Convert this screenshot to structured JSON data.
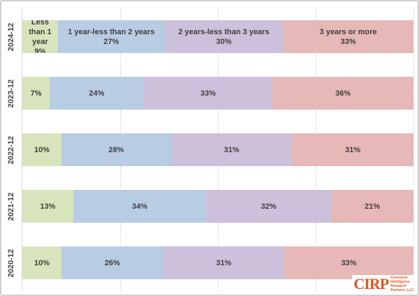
{
  "chart_data": {
    "type": "bar",
    "variant": "horizontal-stacked-100",
    "title": "",
    "xlabel": "",
    "ylabel": "",
    "categories": [
      "Less than 1 year",
      "1 year-less than 2 years",
      "2 years-less than 3 years",
      "3 years or more"
    ],
    "series_colors": [
      "#d8e4bc",
      "#b8cce4",
      "#ccc0da",
      "#e6b8b7"
    ],
    "rows": [
      {
        "label": "2024-12",
        "values": [
          9,
          27,
          30,
          33
        ]
      },
      {
        "label": "2023-12",
        "values": [
          7,
          24,
          33,
          36
        ]
      },
      {
        "label": "2022-12",
        "values": [
          10,
          28,
          31,
          31
        ]
      },
      {
        "label": "2021-12",
        "values": [
          13,
          34,
          32,
          21
        ]
      },
      {
        "label": "2020-12",
        "values": [
          10,
          26,
          31,
          33
        ]
      }
    ],
    "value_suffix": "%",
    "category_names_shown_in_first_row_only": true,
    "gridlines_percent": [
      25,
      50,
      75,
      100
    ],
    "grid_style": "vertical-dashed",
    "text_color": "#3f3f3f"
  },
  "logo": {
    "mark": "CIRP",
    "lines": [
      "Consumer",
      "Intelligence",
      "Research",
      "Partners, LLC"
    ],
    "color": "#e4571d"
  }
}
